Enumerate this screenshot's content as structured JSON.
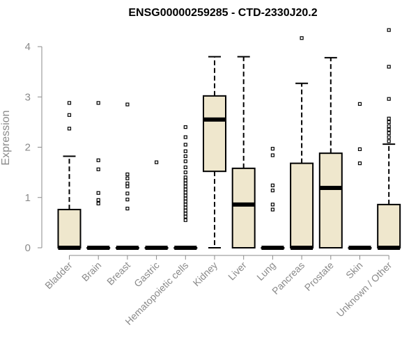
{
  "chart_data": {
    "type": "box",
    "title": "ENSG00000259285 - CTD-2330J20.2",
    "xlabel": "",
    "ylabel": "Expression",
    "ylim": [
      0,
      4.4
    ],
    "yticks": [
      0,
      1,
      2,
      3,
      4
    ],
    "box_fill": "#efe7cd",
    "categories": [
      "Bladder",
      "Brain",
      "Breast",
      "Gastric",
      "Hematopoietic cells",
      "Kidney",
      "Liver",
      "Lung",
      "Pancreas",
      "Prostate",
      "Skin",
      "Unknown / Other"
    ],
    "boxes": [
      {
        "category": "Bladder",
        "min": 0,
        "q1": 0,
        "median": 0,
        "q3": 0.76,
        "max": 1.82,
        "outliers": [
          2.37,
          2.64,
          2.88
        ]
      },
      {
        "category": "Brain",
        "min": 0,
        "q1": 0,
        "median": 0,
        "q3": 0,
        "max": 0,
        "outliers": [
          0.88,
          0.95,
          1.09,
          1.56,
          1.74,
          2.88
        ]
      },
      {
        "category": "Breast",
        "min": 0,
        "q1": 0,
        "median": 0,
        "q3": 0,
        "max": 0,
        "outliers": [
          0.78,
          0.96,
          1.08,
          1.22,
          1.28,
          1.38,
          1.46,
          2.85
        ]
      },
      {
        "category": "Gastric",
        "min": 0,
        "q1": 0,
        "median": 0,
        "q3": 0,
        "max": 0,
        "outliers": [
          1.7
        ]
      },
      {
        "category": "Hematopoietic cells",
        "min": 0,
        "q1": 0,
        "median": 0,
        "q3": 0,
        "max": 0,
        "outliers": [
          0.55,
          0.62,
          0.68,
          0.74,
          0.8,
          0.86,
          0.92,
          0.98,
          1.04,
          1.1,
          1.16,
          1.22,
          1.28,
          1.34,
          1.4,
          1.5,
          1.6,
          1.72,
          1.82,
          1.92,
          2.05,
          2.2,
          2.4
        ]
      },
      {
        "category": "Kidney",
        "min": 0,
        "q1": 1.52,
        "median": 2.55,
        "q3": 3.02,
        "max": 3.8,
        "outliers": []
      },
      {
        "category": "Liver",
        "min": 0,
        "q1": 0,
        "median": 0.86,
        "q3": 1.58,
        "max": 3.8,
        "outliers": []
      },
      {
        "category": "Lung",
        "min": 0,
        "q1": 0,
        "median": 0,
        "q3": 0,
        "max": 0,
        "outliers": [
          0.76,
          0.86,
          1.14,
          1.24,
          1.84,
          1.97
        ]
      },
      {
        "category": "Pancreas",
        "min": 0,
        "q1": 0,
        "median": 0,
        "q3": 1.68,
        "max": 3.27,
        "outliers": [
          4.17
        ]
      },
      {
        "category": "Prostate",
        "min": 0,
        "q1": 0,
        "median": 1.19,
        "q3": 1.88,
        "max": 3.78,
        "outliers": []
      },
      {
        "category": "Skin",
        "min": 0,
        "q1": 0,
        "median": 0,
        "q3": 0,
        "max": 0,
        "outliers": [
          1.68,
          1.96,
          2.86
        ]
      },
      {
        "category": "Unknown / Other",
        "min": 0,
        "q1": 0,
        "median": 0,
        "q3": 0.86,
        "max": 2.06,
        "outliers": [
          2.12,
          2.2,
          2.28,
          2.35,
          2.42,
          2.5,
          2.57,
          2.96,
          3.6,
          4.33
        ]
      }
    ]
  }
}
